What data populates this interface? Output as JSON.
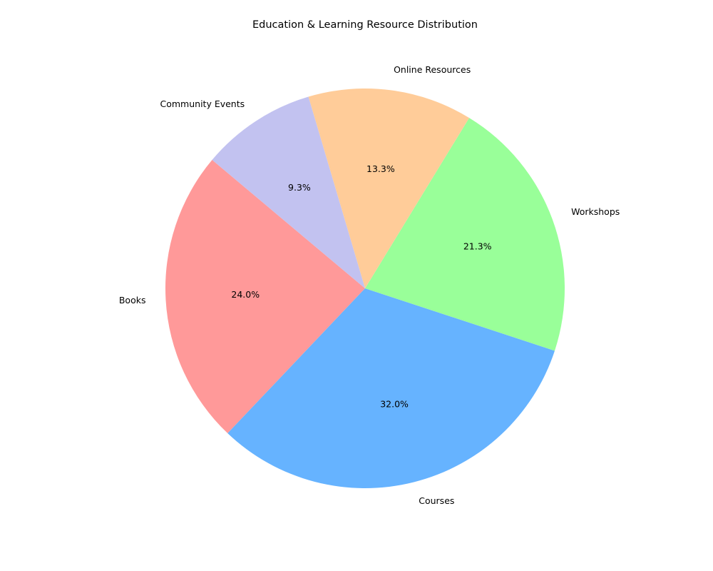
{
  "chart_data": {
    "type": "pie",
    "title": "Education & Learning Resource Distribution",
    "categories": [
      "Books",
      "Courses",
      "Workshops",
      "Online Resources",
      "Community Events"
    ],
    "values": [
      24.0,
      32.0,
      21.3,
      13.3,
      9.3
    ],
    "value_labels": [
      "24.0%",
      "32.0%",
      "21.3%",
      "13.3%",
      "9.3%"
    ],
    "colors": [
      "#ff9999",
      "#66b3ff",
      "#99ff99",
      "#ffcc99",
      "#c2c2f0"
    ],
    "start_angle_deg": 140,
    "direction": "counterclockwise",
    "legend": "none"
  }
}
